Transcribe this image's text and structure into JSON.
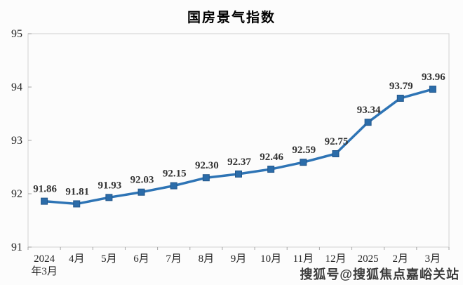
{
  "chart_data": {
    "type": "line",
    "title": "国房景气指数",
    "categories": [
      "2024年3月",
      "4月",
      "5月",
      "6月",
      "7月",
      "8月",
      "9月",
      "10月",
      "11月",
      "12月",
      "2025",
      "2月",
      "3月"
    ],
    "x_label_lines": [
      [
        "2024",
        "年3月"
      ],
      [
        "4月"
      ],
      [
        "5月"
      ],
      [
        "6月"
      ],
      [
        "7月"
      ],
      [
        "8月"
      ],
      [
        "9月"
      ],
      [
        "10月"
      ],
      [
        "11月"
      ],
      [
        "12月"
      ],
      [
        "2025"
      ],
      [
        "2月"
      ],
      [
        "3月"
      ]
    ],
    "values": [
      91.86,
      91.81,
      91.93,
      92.03,
      92.15,
      92.3,
      92.37,
      92.46,
      92.59,
      92.75,
      93.34,
      93.79,
      93.96
    ],
    "point_labels": [
      "91.86",
      "91.81",
      "91.93",
      "92.03",
      "92.15",
      "92.30",
      "92.37",
      "92.46",
      "92.59",
      "92.75",
      "93.34",
      "93.79",
      "93.96"
    ],
    "ylim": [
      91,
      95
    ],
    "yticks": [
      91,
      92,
      93,
      94,
      95
    ],
    "xlabel": "",
    "ylabel": "",
    "grid": false,
    "legend_position": "none",
    "colors": {
      "line": "#2E74B5",
      "marker": "#2B6CA9",
      "marker_stroke": "#24578B",
      "plot_border": "#D9D9D9",
      "tick": "#A6A6A6",
      "axis_text": "#262626",
      "point_label_text": "#333333"
    }
  },
  "watermark": {
    "text": "搜狐号@搜狐焦点嘉峪关站"
  }
}
